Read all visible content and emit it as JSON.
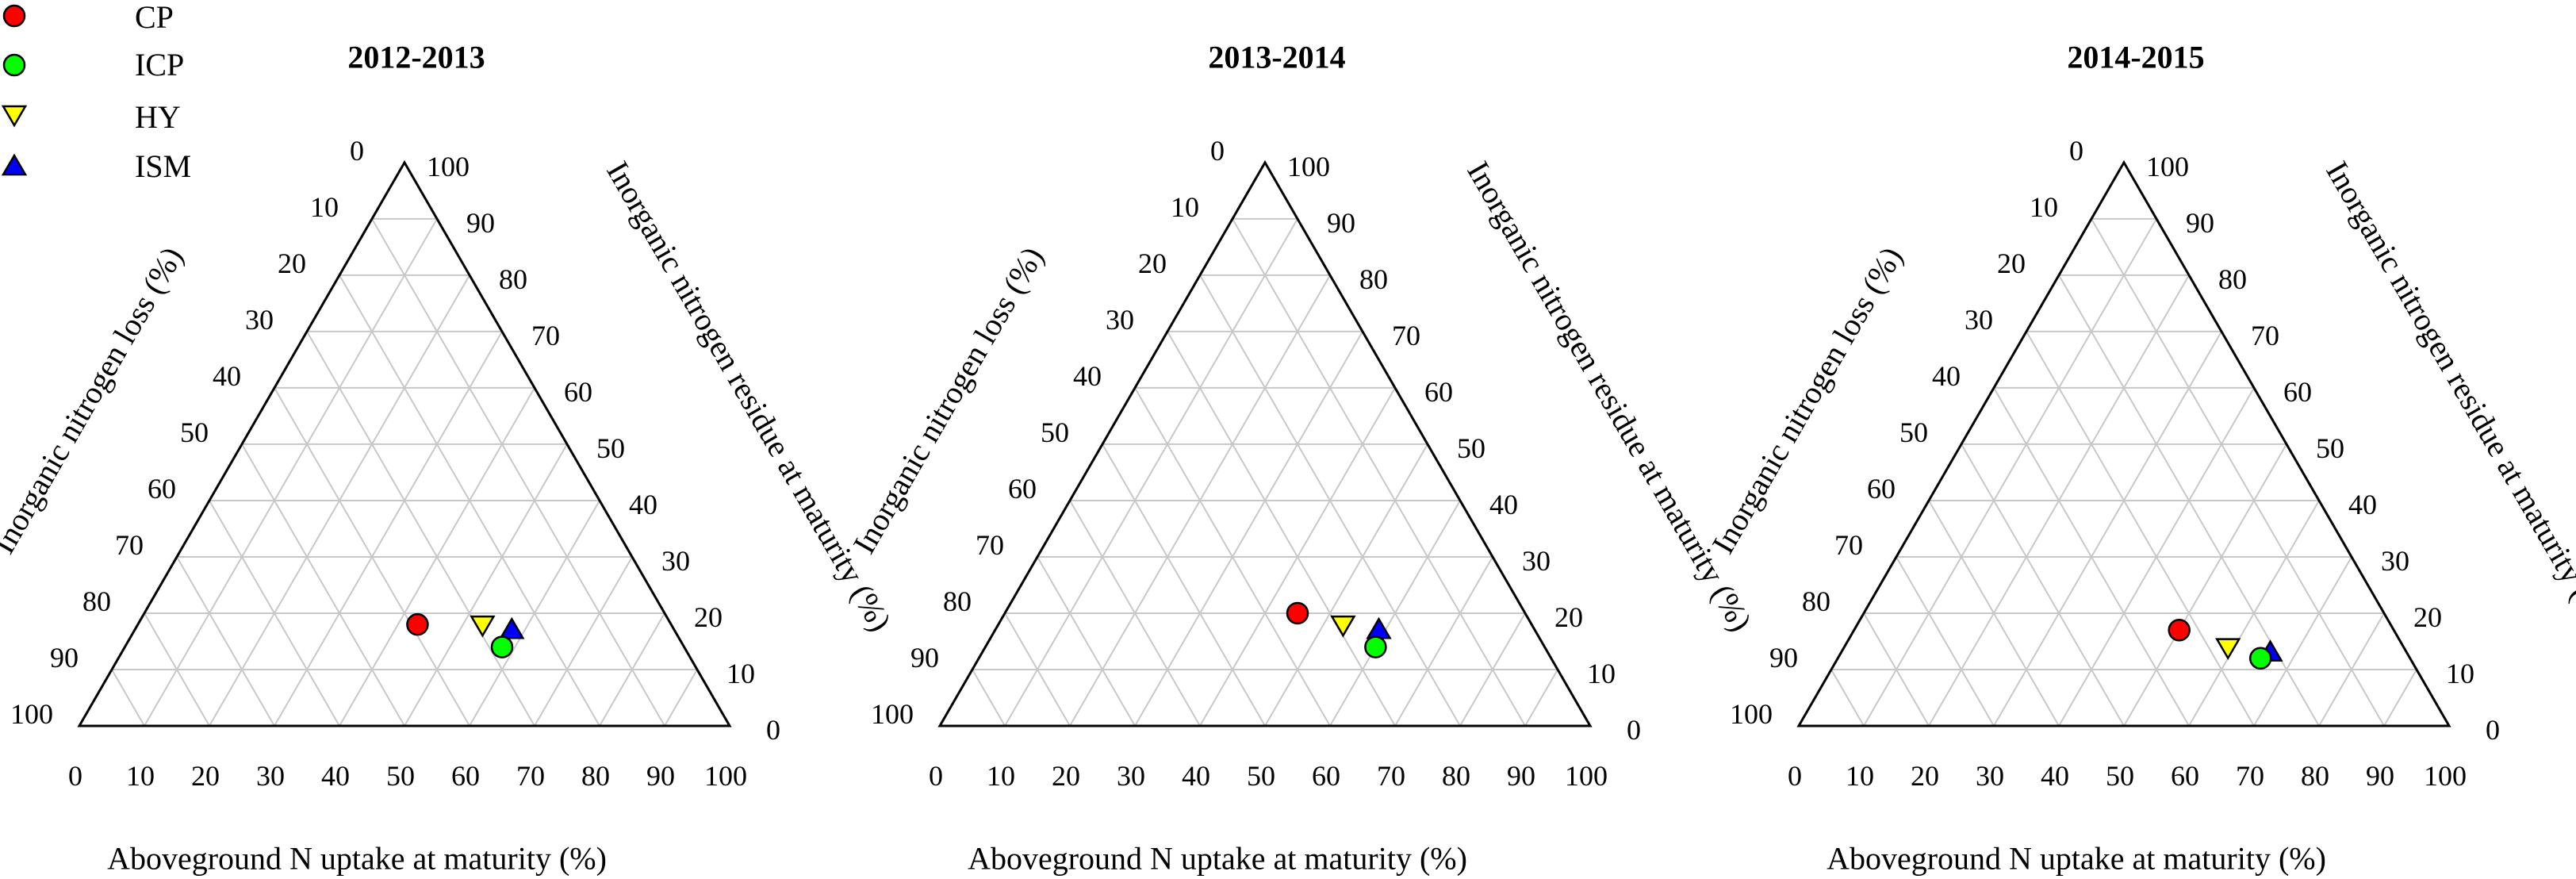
{
  "legend": {
    "items": [
      {
        "key": "CP",
        "label": "CP",
        "marker": "circle",
        "color": "#ff0000"
      },
      {
        "key": "ICP",
        "label": "ICP",
        "marker": "circle",
        "color": "#00ff00"
      },
      {
        "key": "HY",
        "label": "HY",
        "marker": "triangle-down",
        "color": "#ffff00"
      },
      {
        "key": "ISM",
        "label": "ISM",
        "marker": "triangle-up",
        "color": "#0000ff"
      }
    ]
  },
  "chart_data": [
    {
      "type": "scatter",
      "subtype": "ternary",
      "title": "2012-2013",
      "bottom_axis_label": "Aboveground N uptake at maturity (%)",
      "left_axis_label": "Inorganic nitrogen loss (%)",
      "right_axis_label": "Inorganic nitrogen residue at maturity (%)",
      "ticks": [
        "0",
        "10",
        "20",
        "30",
        "40",
        "50",
        "60",
        "70",
        "80",
        "90",
        "100"
      ],
      "grid": true,
      "points": [
        {
          "series": "CP",
          "uptake": 43,
          "loss": 39,
          "residue": 18
        },
        {
          "series": "HY",
          "uptake": 53,
          "loss": 29,
          "residue": 18
        },
        {
          "series": "ISM",
          "uptake": 58,
          "loss": 25,
          "residue": 17
        },
        {
          "series": "ICP",
          "uptake": 58,
          "loss": 28,
          "residue": 14
        }
      ]
    },
    {
      "type": "scatter",
      "subtype": "ternary",
      "title": "2013-2014",
      "bottom_axis_label": "Aboveground N uptake at maturity (%)",
      "left_axis_label": "Inorganic nitrogen loss (%)",
      "right_axis_label": "Inorganic nitrogen residue at maturity (%)",
      "ticks": [
        "0",
        "10",
        "20",
        "30",
        "40",
        "50",
        "60",
        "70",
        "80",
        "90",
        "100"
      ],
      "grid": true,
      "points": [
        {
          "series": "CP",
          "uptake": 45,
          "loss": 35,
          "residue": 20
        },
        {
          "series": "HY",
          "uptake": 53,
          "loss": 29,
          "residue": 18
        },
        {
          "series": "ISM",
          "uptake": 59,
          "loss": 24,
          "residue": 17
        },
        {
          "series": "ICP",
          "uptake": 60,
          "loss": 26,
          "residue": 14
        }
      ]
    },
    {
      "type": "scatter",
      "subtype": "ternary",
      "title": "2014-2015",
      "bottom_axis_label": "Aboveground N uptake at maturity (%)",
      "left_axis_label": "Inorganic nitrogen loss (%)",
      "right_axis_label": "Inorganic nitrogen residue at maturity (%)",
      "ticks": [
        "0",
        "10",
        "20",
        "30",
        "40",
        "50",
        "60",
        "70",
        "80",
        "90",
        "100"
      ],
      "grid": true,
      "points": [
        {
          "series": "CP",
          "uptake": 50,
          "loss": 33,
          "residue": 17
        },
        {
          "series": "HY",
          "uptake": 59,
          "loss": 27,
          "residue": 14
        },
        {
          "series": "ISM",
          "uptake": 66,
          "loss": 21,
          "residue": 13
        },
        {
          "series": "ICP",
          "uptake": 65,
          "loss": 23,
          "residue": 12
        }
      ]
    }
  ]
}
